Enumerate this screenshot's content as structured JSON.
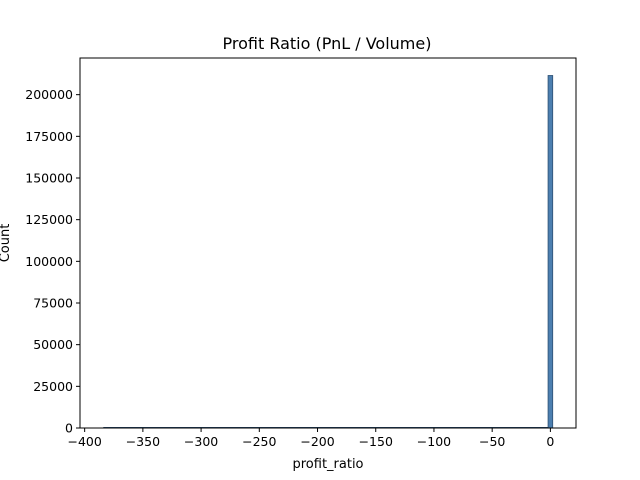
{
  "chart_data": {
    "type": "histogram",
    "title": "Profit Ratio (PnL / Volume)",
    "xlabel": "profit_ratio",
    "ylabel": "Count",
    "xlim": [
      -404,
      22
    ],
    "ylim": [
      0,
      222000
    ],
    "x_ticks": [
      -400,
      -350,
      -300,
      -250,
      -200,
      -150,
      -100,
      -50,
      0
    ],
    "x_tick_labels": [
      "−400",
      "−350",
      "−300",
      "≐",
      "−200",
      "−150",
      "−100",
      "−50",
      "0"
    ],
    "y_ticks": [
      0,
      25000,
      50000,
      75000,
      100000,
      125000,
      150000,
      175000,
      200000
    ],
    "y_tick_labels": [
      "0",
      "25000",
      "50000",
      "75000",
      "100000",
      "125000",
      "150000",
      "175000",
      "200000"
    ],
    "bins": [
      {
        "x0": -2,
        "x1": 2,
        "count": 211500
      }
    ],
    "range": [
      -384,
      2
    ],
    "bar_color": "#4c7fb0",
    "bar_edge_color": "#2c4f73",
    "grid": false,
    "legend": "none"
  }
}
